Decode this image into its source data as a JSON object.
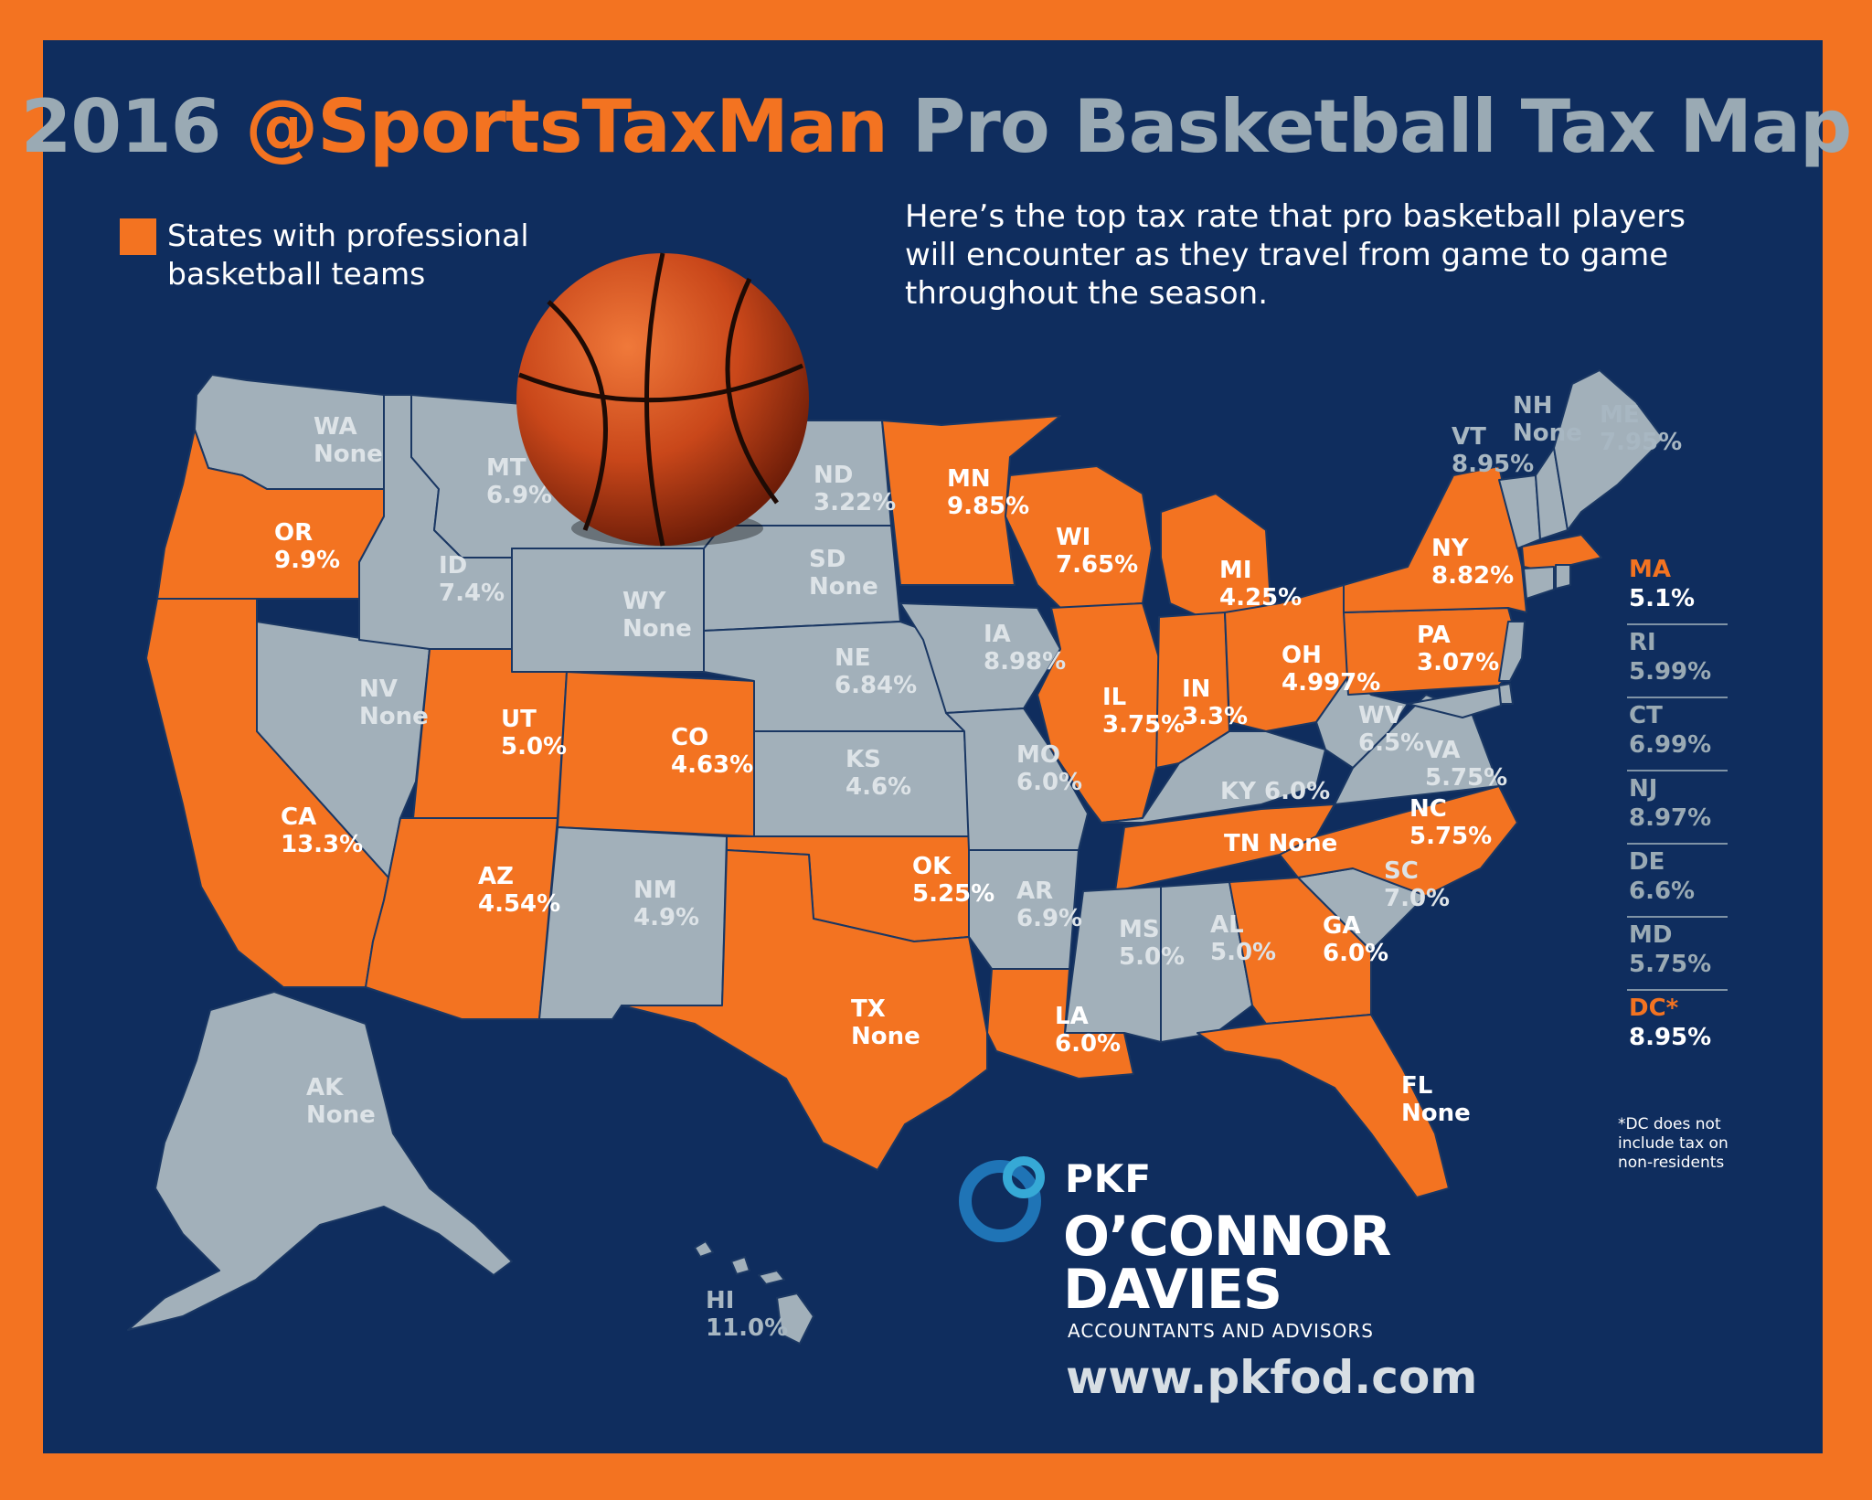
{
  "title": {
    "year": "2016",
    "handle": "@SportsTaxMan",
    "rest": "Pro Basketball Tax Map"
  },
  "legend": {
    "label": "States with professional basketball teams",
    "swatch_color": "#f37321"
  },
  "intro": "Here’s the top tax rate that pro basketball players will encounter as they travel from game to game throughout the season.",
  "colors": {
    "background": "#0f2d5e",
    "border": "#f37321",
    "team_state": "#f37321",
    "other_state": "#a2b0ba"
  },
  "states": [
    {
      "abbr": "WA",
      "rate": "None",
      "team": false
    },
    {
      "abbr": "OR",
      "rate": "9.9%",
      "team": true
    },
    {
      "abbr": "CA",
      "rate": "13.3%",
      "team": true
    },
    {
      "abbr": "NV",
      "rate": "None",
      "team": false
    },
    {
      "abbr": "ID",
      "rate": "7.4%",
      "team": false
    },
    {
      "abbr": "MT",
      "rate": "6.9%",
      "team": false
    },
    {
      "abbr": "WY",
      "rate": "None",
      "team": false
    },
    {
      "abbr": "UT",
      "rate": "5.0%",
      "team": true
    },
    {
      "abbr": "AZ",
      "rate": "4.54%",
      "team": true
    },
    {
      "abbr": "CO",
      "rate": "4.63%",
      "team": true
    },
    {
      "abbr": "NM",
      "rate": "4.9%",
      "team": false
    },
    {
      "abbr": "ND",
      "rate": "3.22%",
      "team": false
    },
    {
      "abbr": "SD",
      "rate": "None",
      "team": false
    },
    {
      "abbr": "NE",
      "rate": "6.84%",
      "team": false
    },
    {
      "abbr": "KS",
      "rate": "4.6%",
      "team": false
    },
    {
      "abbr": "OK",
      "rate": "5.25%",
      "team": true
    },
    {
      "abbr": "TX",
      "rate": "None",
      "team": true
    },
    {
      "abbr": "MN",
      "rate": "9.85%",
      "team": true
    },
    {
      "abbr": "IA",
      "rate": "8.98%",
      "team": false
    },
    {
      "abbr": "MO",
      "rate": "6.0%",
      "team": false
    },
    {
      "abbr": "AR",
      "rate": "6.9%",
      "team": false
    },
    {
      "abbr": "LA",
      "rate": "6.0%",
      "team": true
    },
    {
      "abbr": "WI",
      "rate": "7.65%",
      "team": true
    },
    {
      "abbr": "IL",
      "rate": "3.75%",
      "team": true
    },
    {
      "abbr": "MI",
      "rate": "4.25%",
      "team": true
    },
    {
      "abbr": "IN",
      "rate": "3.3%",
      "team": true
    },
    {
      "abbr": "OH",
      "rate": "4.997%",
      "team": true
    },
    {
      "abbr": "KY",
      "rate": "6.0%",
      "team": false
    },
    {
      "abbr": "TN",
      "rate": "None",
      "team": true
    },
    {
      "abbr": "MS",
      "rate": "5.0%",
      "team": false
    },
    {
      "abbr": "AL",
      "rate": "5.0%",
      "team": false
    },
    {
      "abbr": "GA",
      "rate": "6.0%",
      "team": true
    },
    {
      "abbr": "FL",
      "rate": "None",
      "team": true
    },
    {
      "abbr": "SC",
      "rate": "7.0%",
      "team": false
    },
    {
      "abbr": "NC",
      "rate": "5.75%",
      "team": true
    },
    {
      "abbr": "VA",
      "rate": "5.75%",
      "team": false
    },
    {
      "abbr": "WV",
      "rate": "6.5%",
      "team": false
    },
    {
      "abbr": "PA",
      "rate": "3.07%",
      "team": true
    },
    {
      "abbr": "NY",
      "rate": "8.82%",
      "team": true
    },
    {
      "abbr": "VT",
      "rate": "8.95%",
      "team": false
    },
    {
      "abbr": "NH",
      "rate": "None",
      "team": false
    },
    {
      "abbr": "ME",
      "rate": "7.95%",
      "team": false
    },
    {
      "abbr": "AK",
      "rate": "None",
      "team": false
    },
    {
      "abbr": "HI",
      "rate": "11.0%",
      "team": false
    }
  ],
  "side_states": [
    {
      "abbr": "MA",
      "rate": "5.1%",
      "team": true
    },
    {
      "abbr": "RI",
      "rate": "5.99%",
      "team": false
    },
    {
      "abbr": "CT",
      "rate": "6.99%",
      "team": false
    },
    {
      "abbr": "NJ",
      "rate": "8.97%",
      "team": false
    },
    {
      "abbr": "DE",
      "rate": "6.6%",
      "team": false
    },
    {
      "abbr": "MD",
      "rate": "5.75%",
      "team": false
    },
    {
      "abbr": "DC*",
      "rate": "8.95%",
      "team": true
    }
  ],
  "dc_note": "*DC does not include tax on non-residents",
  "logo": {
    "brand": "PKF",
    "line1": "O’CONNOR",
    "line2": "DAVIES",
    "tagline": "ACCOUNTANTS AND ADVISORS"
  },
  "website": "www.pkfod.com"
}
